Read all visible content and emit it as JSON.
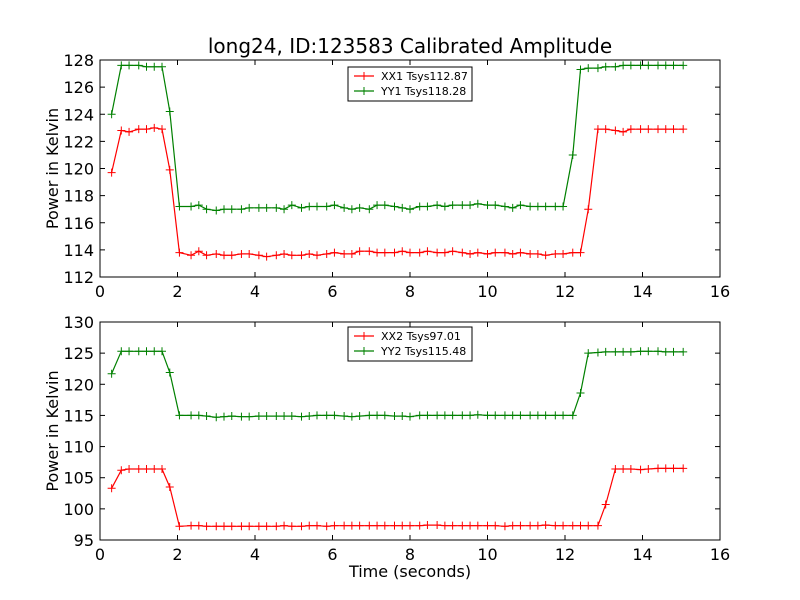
{
  "chart_data": [
    {
      "type": "line",
      "title": "long24, ID:123583 Calibrated Amplitude",
      "xlabel": "",
      "ylabel": "Power in Kelvin",
      "xlim": [
        0,
        16
      ],
      "ylim": [
        112,
        128
      ],
      "xticks": [
        "0",
        "2",
        "4",
        "6",
        "8",
        "10",
        "12",
        "14",
        "16"
      ],
      "yticks": [
        "112",
        "114",
        "116",
        "118",
        "120",
        "122",
        "124",
        "126",
        "128"
      ],
      "legend_position": "top-center",
      "grid": false,
      "x": [
        0.3,
        0.55,
        0.75,
        1.0,
        1.2,
        1.4,
        1.6,
        1.8,
        2.05,
        2.35,
        2.55,
        2.75,
        3.0,
        3.2,
        3.4,
        3.65,
        3.85,
        4.1,
        4.3,
        4.55,
        4.75,
        4.95,
        5.2,
        5.4,
        5.6,
        5.85,
        6.05,
        6.3,
        6.5,
        6.7,
        6.95,
        7.15,
        7.35,
        7.6,
        7.8,
        8.0,
        8.25,
        8.45,
        8.7,
        8.9,
        9.1,
        9.35,
        9.55,
        9.75,
        10.0,
        10.2,
        10.45,
        10.65,
        10.85,
        11.1,
        11.3,
        11.5,
        11.75,
        11.95,
        12.2,
        12.4,
        12.6,
        12.85,
        13.05,
        13.3,
        13.5,
        13.7,
        13.95,
        14.15,
        14.4,
        14.6,
        14.8,
        15.05
      ],
      "series": [
        {
          "name": "XX1 Tsys112.87",
          "color": "#ff0000",
          "values": [
            119.7,
            122.8,
            122.7,
            122.9,
            122.9,
            123.0,
            122.9,
            119.9,
            113.8,
            113.6,
            113.9,
            113.6,
            113.7,
            113.6,
            113.6,
            113.7,
            113.7,
            113.6,
            113.5,
            113.6,
            113.7,
            113.6,
            113.6,
            113.7,
            113.6,
            113.7,
            113.8,
            113.7,
            113.7,
            113.9,
            113.9,
            113.8,
            113.8,
            113.8,
            113.9,
            113.8,
            113.8,
            113.9,
            113.8,
            113.8,
            113.9,
            113.8,
            113.7,
            113.8,
            113.7,
            113.8,
            113.8,
            113.7,
            113.8,
            113.7,
            113.7,
            113.6,
            113.7,
            113.7,
            113.8,
            113.8,
            117.0,
            122.9,
            122.9,
            122.8,
            122.7,
            122.9,
            122.9,
            122.9,
            122.9,
            122.9,
            122.9,
            122.9
          ]
        },
        {
          "name": "YY1 Tsys118.28",
          "color": "#008000",
          "values": [
            124.0,
            127.6,
            127.6,
            127.6,
            127.5,
            127.5,
            127.5,
            124.2,
            117.2,
            117.2,
            117.3,
            117.0,
            116.9,
            117.0,
            117.0,
            117.0,
            117.1,
            117.1,
            117.1,
            117.1,
            117.0,
            117.3,
            117.1,
            117.2,
            117.2,
            117.2,
            117.3,
            117.1,
            117.0,
            117.1,
            117.0,
            117.3,
            117.3,
            117.2,
            117.1,
            117.0,
            117.2,
            117.2,
            117.3,
            117.2,
            117.3,
            117.3,
            117.3,
            117.4,
            117.3,
            117.3,
            117.2,
            117.1,
            117.3,
            117.2,
            117.2,
            117.2,
            117.2,
            117.2,
            121.0,
            127.3,
            127.4,
            127.4,
            127.5,
            127.5,
            127.6,
            127.6,
            127.6,
            127.6,
            127.6,
            127.6,
            127.6,
            127.6
          ]
        }
      ]
    },
    {
      "type": "line",
      "title": "",
      "xlabel": "Time (seconds)",
      "ylabel": "Power in Kelvin",
      "xlim": [
        0,
        16
      ],
      "ylim": [
        95,
        130
      ],
      "xticks": [
        "0",
        "2",
        "4",
        "6",
        "8",
        "10",
        "12",
        "14",
        "16"
      ],
      "yticks": [
        "95",
        "100",
        "105",
        "110",
        "115",
        "120",
        "125",
        "130"
      ],
      "legend_position": "top-center",
      "grid": false,
      "x": [
        0.3,
        0.55,
        0.75,
        1.0,
        1.2,
        1.4,
        1.6,
        1.8,
        2.05,
        2.35,
        2.55,
        2.75,
        3.0,
        3.2,
        3.4,
        3.65,
        3.85,
        4.1,
        4.3,
        4.55,
        4.75,
        4.95,
        5.2,
        5.4,
        5.6,
        5.85,
        6.05,
        6.3,
        6.5,
        6.7,
        6.95,
        7.15,
        7.35,
        7.6,
        7.8,
        8.0,
        8.25,
        8.45,
        8.7,
        8.9,
        9.1,
        9.35,
        9.55,
        9.75,
        10.0,
        10.2,
        10.45,
        10.65,
        10.85,
        11.1,
        11.3,
        11.5,
        11.75,
        11.95,
        12.2,
        12.4,
        12.6,
        12.85,
        13.05,
        13.3,
        13.5,
        13.7,
        13.95,
        14.15,
        14.4,
        14.6,
        14.8,
        15.05
      ],
      "series": [
        {
          "name": "XX2 Tsys97.01",
          "color": "#ff0000",
          "values": [
            103.3,
            106.2,
            106.4,
            106.4,
            106.4,
            106.4,
            106.4,
            103.5,
            97.2,
            97.3,
            97.3,
            97.2,
            97.2,
            97.2,
            97.2,
            97.2,
            97.2,
            97.2,
            97.2,
            97.2,
            97.3,
            97.2,
            97.2,
            97.3,
            97.3,
            97.2,
            97.3,
            97.3,
            97.3,
            97.3,
            97.3,
            97.3,
            97.3,
            97.3,
            97.3,
            97.3,
            97.3,
            97.4,
            97.4,
            97.3,
            97.3,
            97.3,
            97.3,
            97.3,
            97.3,
            97.3,
            97.2,
            97.3,
            97.3,
            97.3,
            97.3,
            97.4,
            97.3,
            97.3,
            97.3,
            97.3,
            97.3,
            97.3,
            100.7,
            106.4,
            106.4,
            106.4,
            106.3,
            106.4,
            106.5,
            106.5,
            106.5,
            106.5
          ]
        },
        {
          "name": "YY2 Tsys115.48",
          "color": "#008000",
          "values": [
            121.7,
            125.3,
            125.3,
            125.3,
            125.3,
            125.3,
            125.3,
            121.9,
            115.0,
            115.0,
            115.0,
            114.9,
            114.7,
            114.8,
            114.9,
            114.8,
            114.8,
            114.9,
            114.9,
            114.9,
            114.9,
            114.9,
            114.8,
            114.9,
            115.0,
            115.0,
            115.0,
            114.9,
            114.8,
            114.9,
            115.0,
            115.0,
            115.0,
            114.9,
            114.9,
            114.8,
            115.0,
            115.0,
            115.0,
            115.0,
            115.0,
            115.0,
            115.0,
            115.1,
            115.0,
            115.0,
            115.0,
            115.0,
            115.0,
            115.0,
            115.0,
            115.0,
            115.0,
            115.0,
            115.0,
            118.6,
            125.0,
            125.1,
            125.2,
            125.2,
            125.2,
            125.2,
            125.3,
            125.3,
            125.3,
            125.2,
            125.2,
            125.2
          ]
        }
      ]
    }
  ]
}
